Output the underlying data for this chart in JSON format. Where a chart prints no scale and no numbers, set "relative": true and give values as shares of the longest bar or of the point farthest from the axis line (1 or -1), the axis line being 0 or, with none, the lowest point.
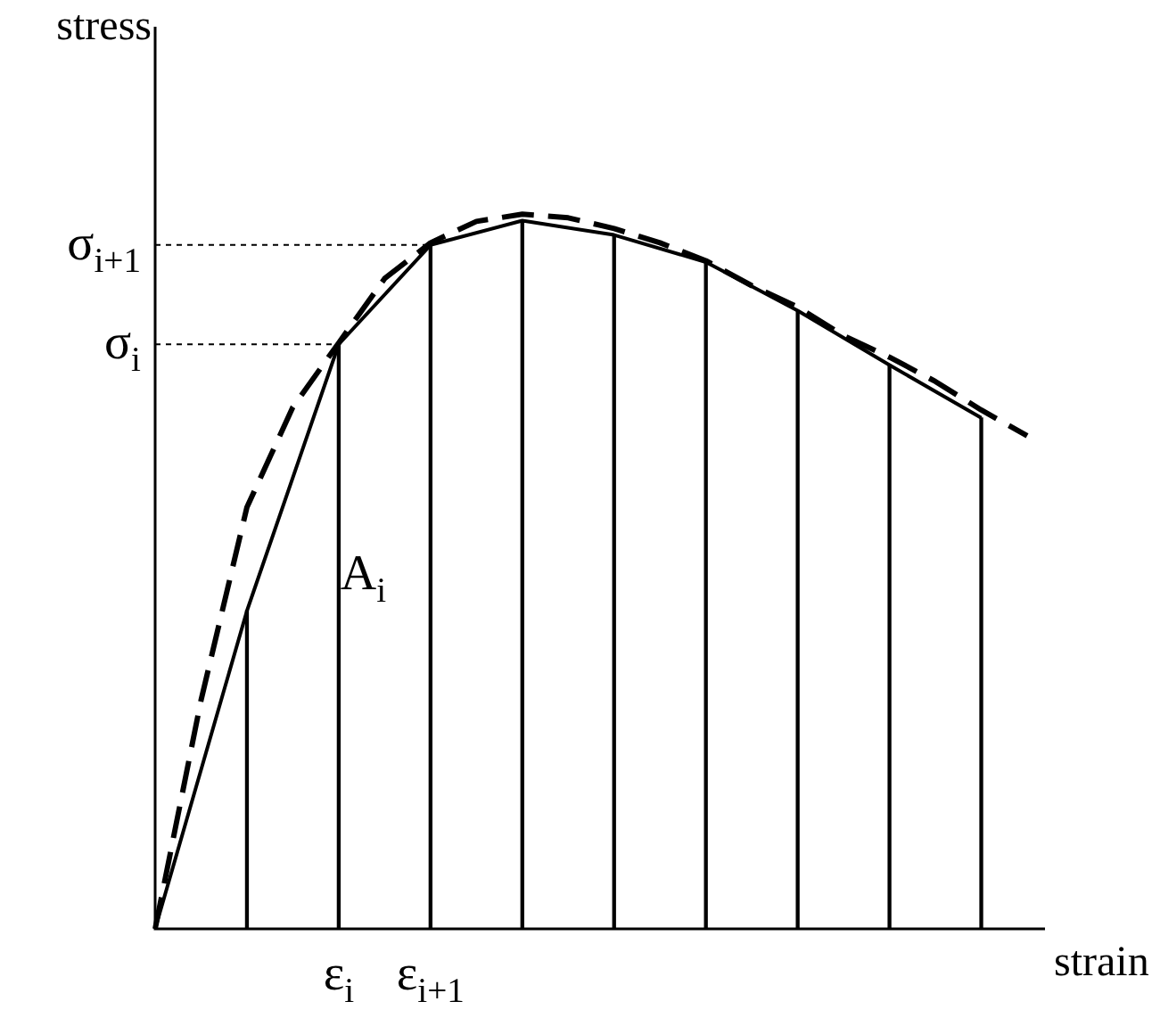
{
  "chart_data": {
    "type": "line",
    "relative": true,
    "xlabel": "strain",
    "ylabel": "stress",
    "categories": [
      null,
      null,
      null,
      null,
      "ε$_{i}$",
      null,
      "ε$_{i+1}$",
      null,
      null,
      null,
      null,
      null,
      null,
      null,
      null,
      null,
      null,
      null,
      null,
      null
    ],
    "series": [
      {
        "type": "bar",
        "color": "#000000",
        "values": [
          null,
          null,
          0.445,
          null,
          0.818,
          null,
          0.957,
          null,
          0.991,
          null,
          0.971,
          null,
          0.933,
          null,
          0.865,
          null,
          0.789,
          null,
          0.715,
          null
        ]
      },
      {
        "color": "#000000",
        "line_style": "solid",
        "values": [
          0,
          null,
          0.445,
          null,
          0.818,
          null,
          0.957,
          null,
          0.991,
          null,
          0.971,
          null,
          0.933,
          null,
          0.865,
          null,
          0.789,
          null,
          0.715,
          null
        ]
      },
      {
        "color": "#000000",
        "line_style": "dashed",
        "values": [
          0,
          0.32,
          0.59,
          0.73,
          0.82,
          0.91,
          0.96,
          0.99,
          1,
          0.995,
          0.98,
          0.96,
          0.935,
          0.9,
          0.87,
          0.83,
          0.8,
          0.766,
          0.726,
          0.69
        ]
      }
    ],
    "ref_lines": [
      {
        "axis": "y",
        "value": 0.818,
        "label": "σ$_{i}$",
        "line_style": "dashed"
      },
      {
        "axis": "y",
        "value": 0.957,
        "label": "σ$_{i+1}$",
        "line_style": "dashed"
      }
    ],
    "annotations": [
      "A$_{i}$"
    ],
    "legend": false,
    "grid": false,
    "marker": "none"
  }
}
